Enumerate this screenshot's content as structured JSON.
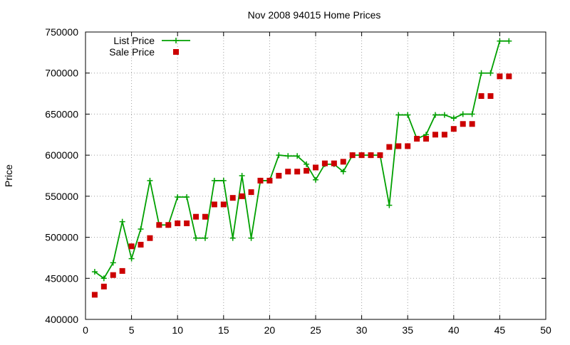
{
  "chart_data": {
    "type": "line",
    "title": "Nov 2008 94015 Home Prices",
    "xlabel": "",
    "ylabel": "Price",
    "xlim": [
      0,
      50
    ],
    "ylim": [
      400000,
      750000
    ],
    "x_ticks": [
      0,
      5,
      10,
      15,
      20,
      25,
      30,
      35,
      40,
      45,
      50
    ],
    "y_ticks": [
      400000,
      450000,
      500000,
      550000,
      600000,
      650000,
      700000,
      750000
    ],
    "grid": true,
    "legend_position": "top-left",
    "x": [
      1,
      2,
      3,
      4,
      5,
      6,
      7,
      8,
      9,
      10,
      11,
      12,
      13,
      14,
      15,
      16,
      17,
      18,
      19,
      20,
      21,
      22,
      23,
      24,
      25,
      26,
      27,
      28,
      29,
      30,
      31,
      32,
      33,
      34,
      35,
      36,
      37,
      38,
      39,
      40,
      41,
      42,
      43,
      44,
      45,
      46
    ],
    "series": [
      {
        "name": "List Price",
        "style": "linespoints",
        "marker": "plus",
        "color": "#00a000",
        "values": [
          458000,
          450000,
          469000,
          519000,
          474000,
          510000,
          569000,
          515000,
          515000,
          549000,
          549000,
          499000,
          499000,
          569000,
          569000,
          499000,
          575000,
          499000,
          569000,
          569000,
          600000,
          599000,
          599000,
          589000,
          570000,
          589000,
          589000,
          580000,
          600000,
          600000,
          600000,
          600000,
          539000,
          649000,
          649000,
          620000,
          625000,
          649000,
          649000,
          645000,
          650000,
          650000,
          700000,
          700000,
          739000,
          739000
        ]
      },
      {
        "name": "Sale Price",
        "style": "points",
        "marker": "square",
        "color": "#cc0000",
        "values": [
          430000,
          440000,
          454000,
          459000,
          489000,
          491000,
          499000,
          515000,
          515000,
          517000,
          517000,
          525000,
          525000,
          540000,
          540000,
          548000,
          550000,
          555000,
          569000,
          569000,
          575000,
          580000,
          580000,
          581000,
          585000,
          590000,
          590000,
          592000,
          600000,
          600000,
          600000,
          600000,
          610000,
          611000,
          611000,
          620000,
          620000,
          625000,
          625000,
          632000,
          638000,
          638000,
          672000,
          672000,
          696000,
          696000
        ]
      }
    ]
  }
}
